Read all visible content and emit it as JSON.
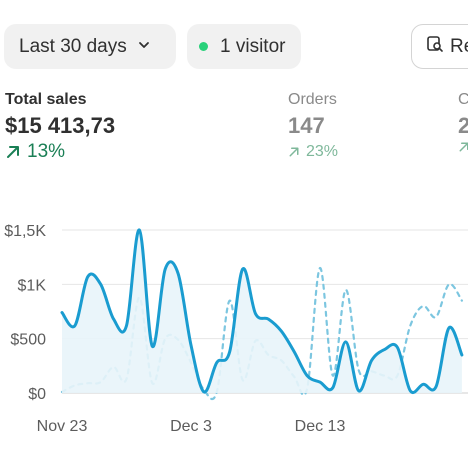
{
  "filters": {
    "date_range": "Last 30 days",
    "visitors": "1 visitor",
    "report_label": "Re",
    "chevron_icon": "chevron-down-icon",
    "report_icon": "report-search-icon",
    "visitor_dot_color": "#29d17a"
  },
  "metrics": [
    {
      "label": "Total sales",
      "value": "$15 413,73",
      "change": "13%",
      "direction": "up",
      "active": true
    },
    {
      "label": "Orders",
      "value": "147",
      "change": "23%",
      "direction": "up",
      "active": false
    },
    {
      "label": "C",
      "value": "2",
      "change": "",
      "direction": "up",
      "active": false
    }
  ],
  "chart_data": {
    "type": "line",
    "title": "",
    "xlabel": "",
    "ylabel": "",
    "y_ticks": [
      "$1,5K",
      "$1K",
      "$500",
      "$0"
    ],
    "y_tick_values": [
      1500,
      1000,
      500,
      0
    ],
    "ylim": [
      0,
      1500
    ],
    "x_ticks": [
      "Nov 23",
      "Dec 3",
      "Dec 13"
    ],
    "x_tick_index": [
      0,
      10,
      20
    ],
    "grid": true,
    "series": [
      {
        "style": "solid",
        "color": "#1a9cd0",
        "fill": "#e8f4fa",
        "values": [
          740,
          620,
          1070,
          1000,
          680,
          620,
          1500,
          430,
          1140,
          1100,
          440,
          10,
          280,
          380,
          1140,
          730,
          680,
          570,
          380,
          160,
          100,
          50,
          470,
          20,
          300,
          400,
          420,
          20,
          80,
          60,
          600,
          350
        ]
      },
      {
        "style": "dashed",
        "color": "#7cc6e0",
        "values": [
          0,
          70,
          90,
          100,
          240,
          130,
          880,
          90,
          500,
          490,
          280,
          30,
          10,
          850,
          120,
          480,
          350,
          300,
          150,
          40,
          1150,
          160,
          950,
          210,
          200,
          160,
          160,
          620,
          800,
          700,
          1000,
          850
        ]
      }
    ]
  }
}
